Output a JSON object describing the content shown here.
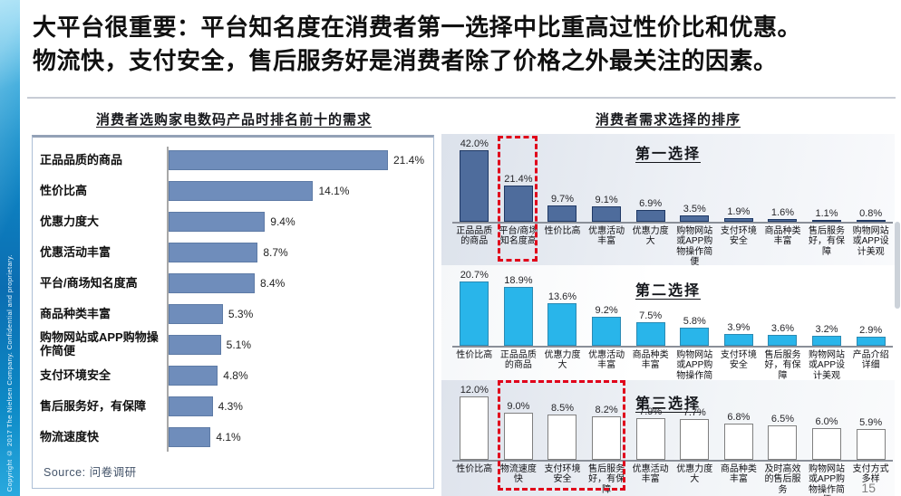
{
  "sidebar": {
    "copyright": "Copyright © 2017 The Nielsen Company. Confidential and proprietary."
  },
  "header": {
    "title_line1": "大平台很重要：平台知名度在消费者第一选择中比重高过性价比和优惠。",
    "title_line2": "物流快，支付安全，售后服务好是消费者除了价格之外最关注的因素。"
  },
  "right_section": {
    "title": "消费者需求选择的排序"
  },
  "page_number": "15",
  "colors": {
    "left_bar": "#6f8dbb",
    "first_choice_bar": "#4e6c9c",
    "first_choice_border": "#1f3864",
    "second_choice_bar": "#29b5ea",
    "second_choice_border": "#2b8ab3",
    "third_choice_bar": "#ffffff",
    "third_choice_border": "#7f7f7f",
    "highlight_dash": "#e0001a"
  },
  "chart_data": [
    {
      "id": "top10-needs",
      "type": "bar",
      "orientation": "horizontal",
      "title": "消费者选购家电数码产品时排名前十的需求",
      "categories": [
        "正品品质的商品",
        "性价比高",
        "优惠力度大",
        "优惠活动丰富",
        "平台/商场知名度高",
        "商品种类丰富",
        "购物网站或APP购物操作简便",
        "支付环境安全",
        "售后服务好，有保障",
        "物流速度快"
      ],
      "values": [
        21.4,
        14.1,
        9.4,
        8.7,
        8.4,
        5.3,
        5.1,
        4.8,
        4.3,
        4.1
      ],
      "unit": "%",
      "xlim": [
        0,
        24
      ],
      "source_label": "Source:",
      "source_text": "问卷调研"
    },
    {
      "id": "first-choice",
      "type": "bar",
      "orientation": "vertical",
      "title": "第一选择",
      "categories": [
        "正品品质的商品",
        "平台/商场知名度高",
        "性价比高",
        "优惠活动丰富",
        "优惠力度大",
        "购物网站或APP购物操作简便",
        "支付环境安全",
        "商品种类丰富",
        "售后服务好，有保障",
        "购物网站或APP设计美观"
      ],
      "values": [
        42.0,
        21.4,
        9.7,
        9.1,
        6.9,
        3.5,
        1.9,
        1.6,
        1.1,
        0.8
      ],
      "unit": "%",
      "highlight_indices": [
        1
      ]
    },
    {
      "id": "second-choice",
      "type": "bar",
      "orientation": "vertical",
      "title": "第二选择",
      "categories": [
        "性价比高",
        "正品品质的商品",
        "优惠力度大",
        "优惠活动丰富",
        "商品种类丰富",
        "购物网站或APP购物操作简便",
        "支付环境安全",
        "售后服务好，有保障",
        "购物网站或APP设计美观",
        "产品介绍详细"
      ],
      "values": [
        20.7,
        18.9,
        13.6,
        9.2,
        7.5,
        5.8,
        3.9,
        3.6,
        3.2,
        2.9
      ],
      "unit": "%",
      "highlight_indices": []
    },
    {
      "id": "third-choice",
      "type": "bar",
      "orientation": "vertical",
      "title": "第三选择",
      "categories": [
        "性价比高",
        "物流速度快",
        "支付环境安全",
        "售后服务好，有保障",
        "优惠活动丰富",
        "优惠力度大",
        "商品种类丰富",
        "及时高效的售后服务",
        "购物网站或APP购物操作简便",
        "支付方式多样"
      ],
      "values": [
        12.0,
        9.0,
        8.5,
        8.2,
        7.9,
        7.7,
        6.8,
        6.5,
        6.0,
        5.9
      ],
      "unit": "%",
      "highlight_indices": [
        1,
        2,
        3
      ]
    }
  ]
}
